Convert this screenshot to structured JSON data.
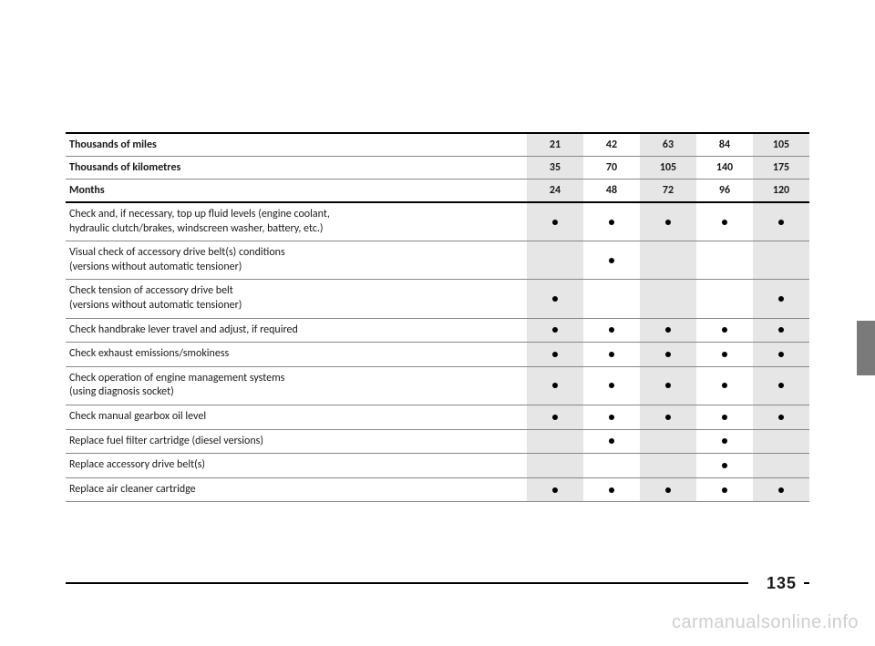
{
  "headers": [
    {
      "label": "Thousands of miles",
      "values": [
        "21",
        "42",
        "63",
        "84",
        "105"
      ]
    },
    {
      "label": "Thousands of kilometres",
      "values": [
        "35",
        "70",
        "105",
        "140",
        "175"
      ]
    },
    {
      "label": "Months",
      "values": [
        "24",
        "48",
        "72",
        "96",
        "120"
      ]
    }
  ],
  "rows": [
    {
      "label": "Check and, if necessary, top up fluid levels (engine coolant,\nhydraulic clutch/brakes, windscreen washer, battery, etc.)",
      "cells": [
        true,
        true,
        true,
        true,
        true
      ]
    },
    {
      "label": "Visual check of accessory drive belt(s) conditions\n(versions without automatic tensioner)",
      "cells": [
        false,
        true,
        false,
        false,
        false
      ]
    },
    {
      "label": "Check tension of accessory drive belt\n(versions without automatic tensioner)",
      "cells": [
        true,
        false,
        false,
        false,
        true
      ]
    },
    {
      "label": "Check handbrake lever travel and adjust, if required",
      "cells": [
        true,
        true,
        true,
        true,
        true
      ]
    },
    {
      "label": "Check exhaust emissions/smokiness",
      "cells": [
        true,
        true,
        true,
        true,
        true
      ]
    },
    {
      "label": "Check operation of engine management systems\n(using diagnosis socket)",
      "cells": [
        true,
        true,
        true,
        true,
        true
      ]
    },
    {
      "label": "Check manual gearbox oil level",
      "cells": [
        true,
        true,
        true,
        true,
        true
      ]
    },
    {
      "label": "Replace fuel filter cartridge (diesel versions)",
      "cells": [
        false,
        true,
        false,
        true,
        false
      ]
    },
    {
      "label": "Replace accessory drive belt(s)",
      "cells": [
        false,
        false,
        false,
        true,
        false
      ]
    },
    {
      "label": "Replace air cleaner cartridge",
      "cells": [
        true,
        true,
        true,
        true,
        true
      ]
    }
  ],
  "page_number": "135",
  "watermark": "carmanualsonline.info"
}
